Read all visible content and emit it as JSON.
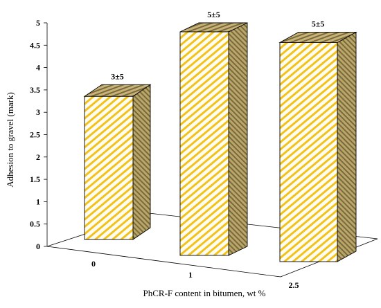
{
  "chart_data": {
    "type": "bar",
    "style": "3d",
    "title": "",
    "categories": [
      "0",
      "1",
      "2.5"
    ],
    "values": [
      3.2,
      5.0,
      4.9
    ],
    "data_labels": [
      "3±5",
      "5±5",
      "5±5"
    ],
    "xlabel": "PhCR-F content in bitumen, wt %",
    "ylabel": "Adhesion to gravel (mark)",
    "ylim": [
      0,
      5
    ],
    "yticks": [
      "0",
      "0.5",
      "1",
      "1.5",
      "2",
      "2.5",
      "3",
      "3.5",
      "4",
      "4.5",
      "5"
    ],
    "grid": false,
    "legend": "none",
    "colors": {
      "front_base": "#fffdf2",
      "front_stripe": "#f2c21b",
      "side_base": "#b9a66a",
      "side_stripe": "#7a6a3a",
      "top_base": "#c8b47a",
      "outline": "#000000"
    }
  }
}
